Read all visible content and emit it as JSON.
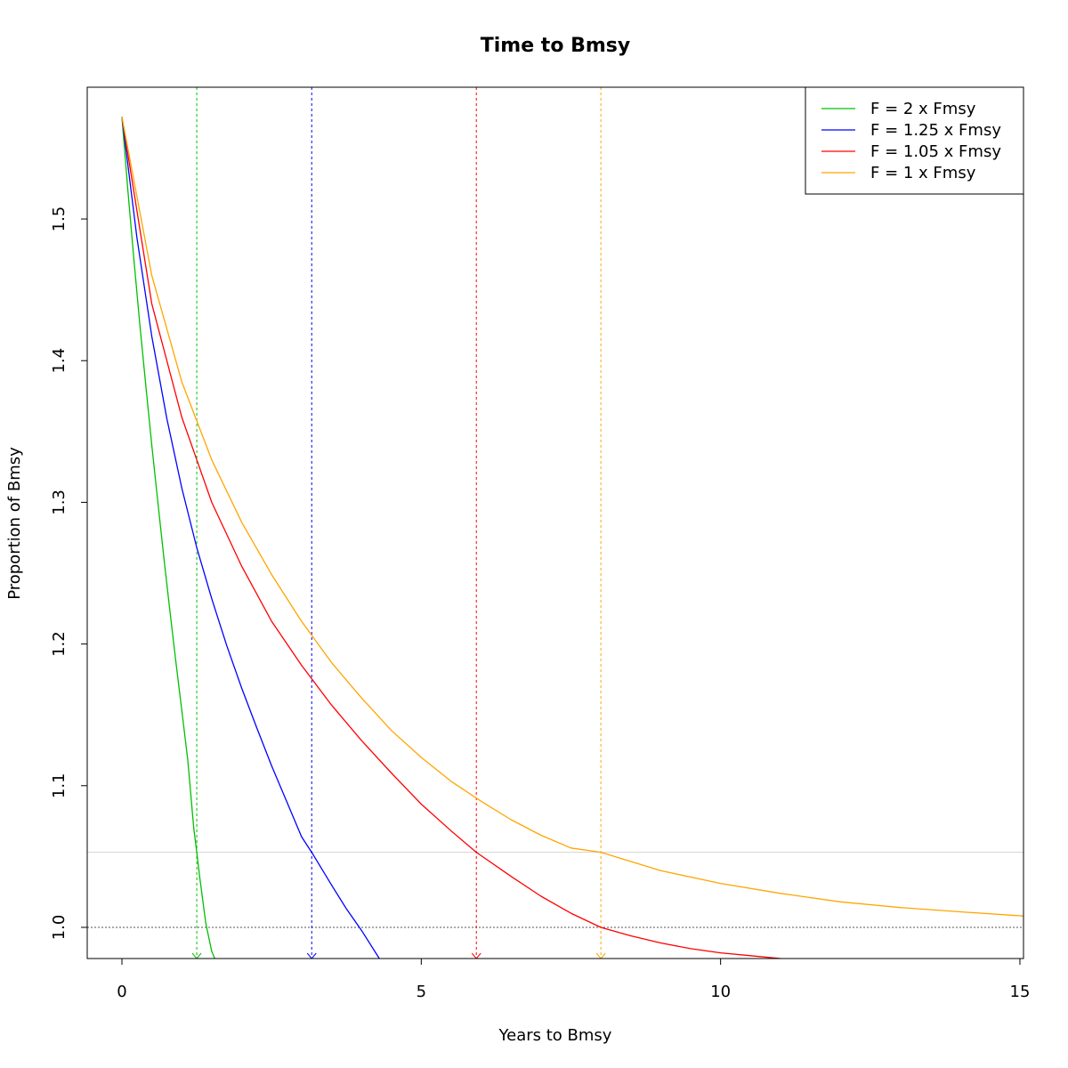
{
  "chart_data": {
    "type": "line",
    "title": "Time to Bmsy",
    "xlabel": "Years to Bmsy",
    "ylabel": "Proportion of Bmsy",
    "xlim": [
      -0.58,
      15.06
    ],
    "ylim": [
      0.978,
      1.593
    ],
    "xticks": [
      0,
      5,
      10,
      15
    ],
    "yticks": [
      1.0,
      1.1,
      1.2,
      1.3,
      1.4,
      1.5
    ],
    "ytick_labels": [
      "1.0",
      "1.1",
      "1.2",
      "1.3",
      "1.4",
      "1.5"
    ],
    "legend_position": "top-right",
    "grid": false,
    "reference_lines": [
      {
        "kind": "horizontal",
        "y": 1.0,
        "color": "#555555",
        "style": "dotted"
      },
      {
        "kind": "horizontal",
        "y": 1.053,
        "color": "#d3d3d3",
        "style": "solid"
      }
    ],
    "series": [
      {
        "name": "F = 2 x Fmsy",
        "color": "#00c000",
        "x": [
          0,
          0.1,
          0.2,
          0.3,
          0.4,
          0.5,
          0.6,
          0.7,
          0.8,
          0.9,
          1.0,
          1.1,
          1.2,
          1.25,
          1.3,
          1.4,
          1.5,
          1.55
        ],
        "y": [
          1.572,
          1.52,
          1.471,
          1.425,
          1.382,
          1.34,
          1.3,
          1.261,
          1.224,
          1.188,
          1.153,
          1.118,
          1.07,
          1.053,
          1.035,
          1.003,
          0.983,
          0.978
        ],
        "marker_x": 1.25
      },
      {
        "name": "F = 1.25 x Fmsy",
        "color": "#0000ff",
        "x": [
          0,
          0.25,
          0.5,
          0.75,
          1.0,
          1.25,
          1.5,
          1.75,
          2.0,
          2.25,
          2.5,
          2.75,
          3.0,
          3.17,
          3.5,
          3.75,
          4.0,
          4.3
        ],
        "y": [
          1.572,
          1.487,
          1.417,
          1.359,
          1.31,
          1.268,
          1.232,
          1.199,
          1.169,
          1.141,
          1.114,
          1.089,
          1.064,
          1.053,
          1.03,
          1.013,
          0.998,
          0.978
        ],
        "marker_x": 3.17
      },
      {
        "name": "F = 1.05 x Fmsy",
        "color": "#ff0000",
        "x": [
          0,
          0.5,
          1.0,
          1.5,
          2.0,
          2.5,
          3.0,
          3.5,
          4.0,
          4.5,
          5.0,
          5.5,
          5.92,
          6.5,
          7.0,
          7.5,
          8.0,
          8.5,
          9.0,
          9.5,
          10.0,
          10.5,
          11.0,
          11.2
        ],
        "y": [
          1.572,
          1.44,
          1.36,
          1.3,
          1.255,
          1.216,
          1.185,
          1.157,
          1.132,
          1.109,
          1.087,
          1.068,
          1.053,
          1.036,
          1.022,
          1.01,
          1.0,
          0.994,
          0.989,
          0.985,
          0.982,
          0.98,
          0.978,
          0.977
        ],
        "marker_x": 5.92
      },
      {
        "name": "F = 1 x Fmsy",
        "color": "#ffa500",
        "x": [
          0,
          0.5,
          1.0,
          1.5,
          2.0,
          2.5,
          3.0,
          3.5,
          4.0,
          4.5,
          5.0,
          5.5,
          6.0,
          6.5,
          7.0,
          7.5,
          8.0,
          9.0,
          10.0,
          11.0,
          12.0,
          13.0,
          14.0,
          15.06
        ],
        "y": [
          1.572,
          1.46,
          1.385,
          1.33,
          1.286,
          1.249,
          1.216,
          1.187,
          1.162,
          1.139,
          1.12,
          1.103,
          1.089,
          1.076,
          1.065,
          1.056,
          1.053,
          1.04,
          1.031,
          1.024,
          1.018,
          1.014,
          1.011,
          1.008
        ],
        "marker_x": 8.0
      }
    ]
  }
}
